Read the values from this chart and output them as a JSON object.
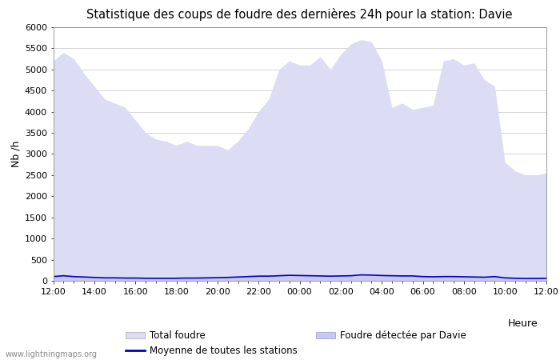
{
  "title": "Statistique des coups de foudre des dernières 24h pour la station: Davie",
  "ylabel": "Nb /h",
  "xlabel": "Heure",
  "ylim": [
    0,
    6000
  ],
  "yticks": [
    0,
    500,
    1000,
    1500,
    2000,
    2500,
    3000,
    3500,
    4000,
    4500,
    5000,
    5500,
    6000
  ],
  "xtick_labels": [
    "12:00",
    "14:00",
    "16:00",
    "18:00",
    "20:00",
    "22:00",
    "00:00",
    "02:00",
    "04:00",
    "06:00",
    "08:00",
    "10:00",
    "12:00"
  ],
  "background_color": "#ffffff",
  "plot_bg_color": "#ffffff",
  "grid_color": "#cccccc",
  "watermark": "www.lightningmaps.org",
  "total_foudre_color": "#dcdcf5",
  "davie_color": "#c8c8f0",
  "mean_line_color": "#0000cc",
  "x": [
    0,
    1,
    2,
    3,
    4,
    5,
    6,
    7,
    8,
    9,
    10,
    11,
    12,
    13,
    14,
    15,
    16,
    17,
    18,
    19,
    20,
    21,
    22,
    23,
    24,
    25,
    26,
    27,
    28,
    29,
    30,
    31,
    32,
    33,
    34,
    35,
    36,
    37,
    38,
    39,
    40,
    41,
    42,
    43,
    44,
    45,
    46,
    47,
    48
  ],
  "total_foudre": [
    5200,
    5400,
    5250,
    4900,
    4600,
    4300,
    4200,
    4100,
    3800,
    3500,
    3350,
    3300,
    3200,
    3300,
    3200,
    3200,
    3200,
    3100,
    3300,
    3600,
    4000,
    4300,
    5000,
    5200,
    5100,
    5100,
    5300,
    5000,
    5350,
    5600,
    5700,
    5650,
    5200,
    4100,
    4200,
    4050,
    4100,
    4150,
    5200,
    5250,
    5100,
    5150,
    4750,
    4600,
    2800,
    2600,
    2500,
    2500,
    2550
  ],
  "davie": [
    100,
    120,
    100,
    90,
    80,
    70,
    70,
    65,
    65,
    60,
    60,
    60,
    60,
    65,
    65,
    70,
    75,
    80,
    90,
    100,
    110,
    110,
    120,
    130,
    125,
    120,
    115,
    110,
    115,
    120,
    140,
    135,
    125,
    120,
    115,
    115,
    100,
    95,
    100,
    100,
    95,
    90,
    85,
    100,
    70,
    60,
    55,
    55,
    60
  ],
  "mean_stations": [
    100,
    120,
    100,
    90,
    80,
    70,
    70,
    65,
    65,
    60,
    60,
    60,
    60,
    65,
    65,
    70,
    75,
    80,
    90,
    100,
    110,
    110,
    120,
    130,
    125,
    120,
    115,
    110,
    115,
    120,
    140,
    135,
    125,
    120,
    115,
    115,
    100,
    95,
    100,
    100,
    95,
    90,
    85,
    100,
    70,
    60,
    55,
    55,
    60
  ],
  "legend_order": [
    "total_foudre",
    "mean_stations",
    "davie"
  ]
}
